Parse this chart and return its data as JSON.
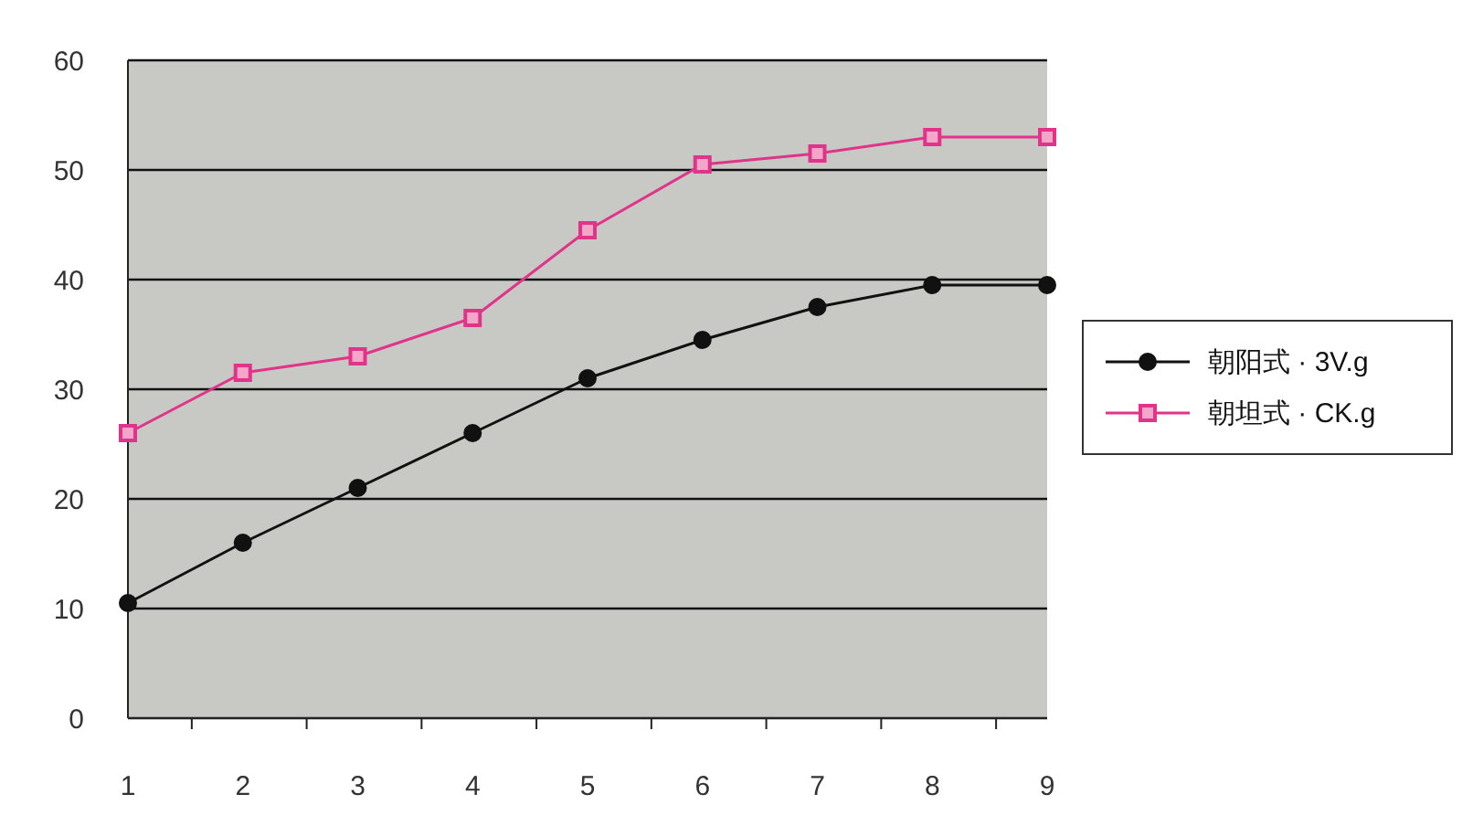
{
  "chart_data": {
    "type": "line",
    "categories": [
      "1",
      "2",
      "3",
      "4",
      "5",
      "6",
      "7",
      "8",
      "9"
    ],
    "series": [
      {
        "name": "朝阳式 · 3V.g",
        "color": "#111111",
        "marker": "circle",
        "values": [
          10.5,
          16,
          21,
          26,
          31,
          34.5,
          37.5,
          39.5,
          39.5
        ]
      },
      {
        "name": "朝坦式 · CK.g",
        "color": "#e0338a",
        "marker": "square",
        "values": [
          26,
          31.5,
          33,
          36.5,
          44.5,
          50.5,
          51.5,
          53,
          53
        ]
      }
    ],
    "ylim": [
      0,
      60
    ],
    "yticks": [
      0,
      10,
      20,
      30,
      40,
      50,
      60
    ],
    "grid": "y",
    "legend": "right"
  }
}
